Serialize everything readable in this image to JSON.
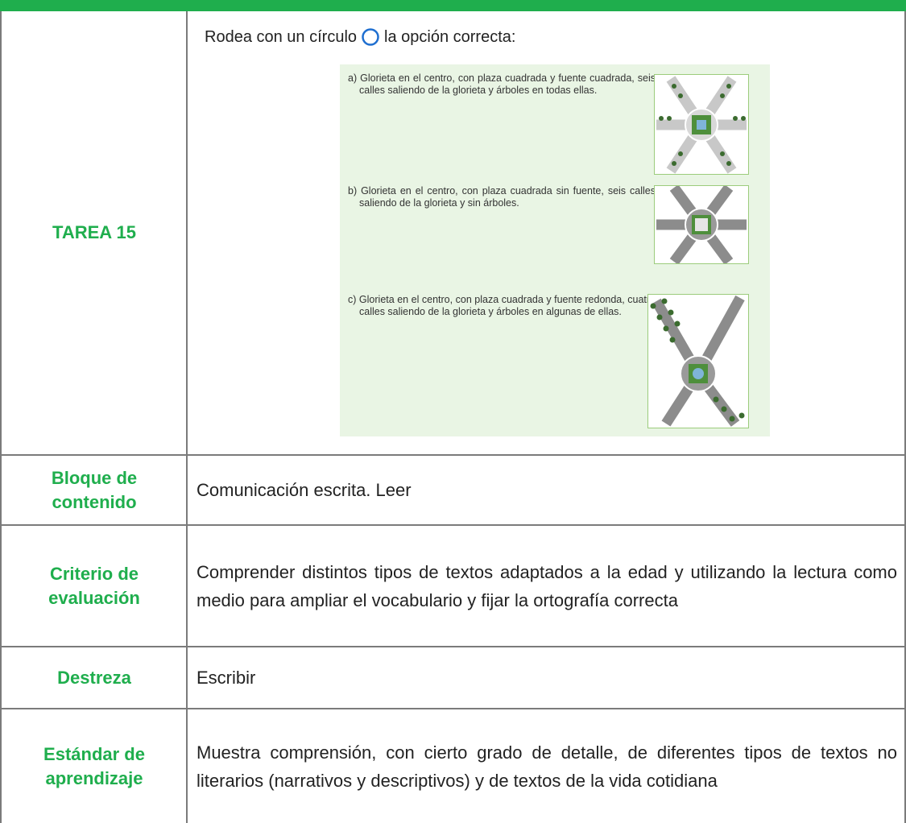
{
  "task": {
    "label": "TAREA 15",
    "instruction": [
      "Rodea con un círculo",
      "la opción correcta:"
    ],
    "options": [
      "a) Glorieta en el centro, con plaza cuadrada y fuente cuadrada, seis calles saliendo de la glorieta y árboles en todas ellas.",
      "b) Glorieta en el centro, con plaza cuadrada sin fuente, seis calles saliendo de la glorieta y sin árboles.",
      "c) Glorieta en el centro, con plaza cuadrada y fuente redonda, cuatro calles saliendo de la glorieta y árboles en algunas de ellas."
    ]
  },
  "table": {
    "rows": [
      [
        "Bloque de contenido",
        "Comunicación escrita. Leer"
      ],
      [
        "Criterio de evaluación",
        "Comprender distintos tipos de textos adaptados a la edad y utilizando la lectura como medio para ampliar el vocabulario y fijar la ortografía correcta"
      ],
      [
        "Destreza",
        "Escribir"
      ],
      [
        "Estándar de aprendizaje",
        "Muestra comprensión, con cierto grado de detalle, de diferentes tipos de textos no literarios (narrativos y descriptivos) y de textos de la vida cotidiana"
      ]
    ]
  }
}
